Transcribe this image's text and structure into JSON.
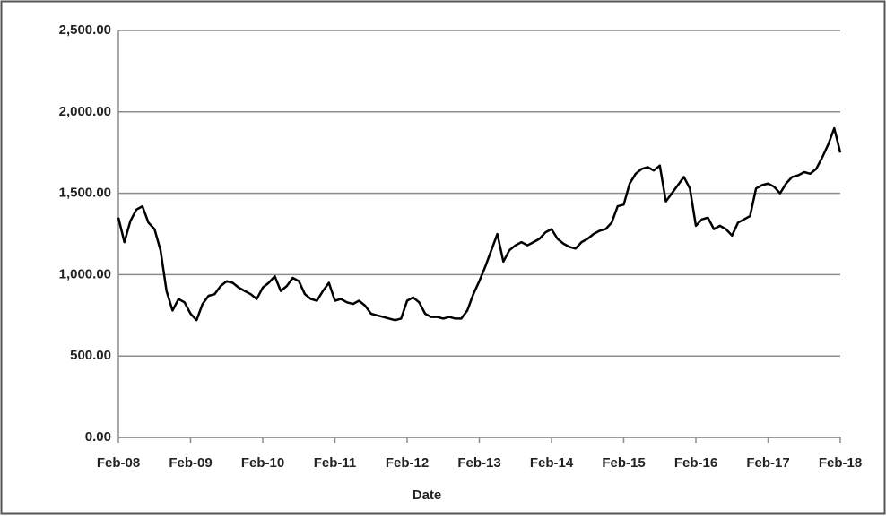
{
  "chart_data": {
    "type": "line",
    "x_label": "Date",
    "x": [
      "2008-02",
      "2008-03",
      "2008-04",
      "2008-05",
      "2008-06",
      "2008-07",
      "2008-08",
      "2008-09",
      "2008-10",
      "2008-11",
      "2008-12",
      "2009-01",
      "2009-02",
      "2009-03",
      "2009-04",
      "2009-05",
      "2009-06",
      "2009-07",
      "2009-08",
      "2009-09",
      "2009-10",
      "2009-11",
      "2009-12",
      "2010-01",
      "2010-02",
      "2010-03",
      "2010-04",
      "2010-05",
      "2010-06",
      "2010-07",
      "2010-08",
      "2010-09",
      "2010-10",
      "2010-11",
      "2010-12",
      "2011-01",
      "2011-02",
      "2011-03",
      "2011-04",
      "2011-05",
      "2011-06",
      "2011-07",
      "2011-08",
      "2011-09",
      "2011-10",
      "2011-11",
      "2011-12",
      "2012-01",
      "2012-02",
      "2012-03",
      "2012-04",
      "2012-05",
      "2012-06",
      "2012-07",
      "2012-08",
      "2012-09",
      "2012-10",
      "2012-11",
      "2012-12",
      "2013-01",
      "2013-02",
      "2013-03",
      "2013-04",
      "2013-05",
      "2013-06",
      "2013-07",
      "2013-08",
      "2013-09",
      "2013-10",
      "2013-11",
      "2013-12",
      "2014-01",
      "2014-02",
      "2014-03",
      "2014-04",
      "2014-05",
      "2014-06",
      "2014-07",
      "2014-08",
      "2014-09",
      "2014-10",
      "2014-11",
      "2014-12",
      "2015-01",
      "2015-02",
      "2015-03",
      "2015-04",
      "2015-05",
      "2015-06",
      "2015-07",
      "2015-08",
      "2015-09",
      "2015-10",
      "2015-11",
      "2015-12",
      "2016-01",
      "2016-02",
      "2016-03",
      "2016-04",
      "2016-05",
      "2016-06",
      "2016-07",
      "2016-08",
      "2016-09",
      "2016-10",
      "2016-11",
      "2016-12",
      "2017-01",
      "2017-02",
      "2017-03",
      "2017-04",
      "2017-05",
      "2017-06",
      "2017-07",
      "2017-08",
      "2017-09",
      "2017-10",
      "2017-11",
      "2017-12",
      "2018-01",
      "2018-02"
    ],
    "values": [
      1350,
      1200,
      1330,
      1400,
      1420,
      1320,
      1280,
      1150,
      900,
      780,
      850,
      830,
      760,
      720,
      820,
      870,
      880,
      930,
      960,
      950,
      920,
      900,
      880,
      850,
      920,
      950,
      990,
      900,
      930,
      980,
      960,
      880,
      850,
      840,
      900,
      950,
      840,
      850,
      830,
      820,
      840,
      810,
      760,
      750,
      740,
      730,
      720,
      730,
      840,
      860,
      830,
      760,
      740,
      740,
      730,
      740,
      730,
      730,
      780,
      880,
      960,
      1050,
      1150,
      1250,
      1080,
      1150,
      1180,
      1200,
      1180,
      1200,
      1220,
      1260,
      1280,
      1220,
      1190,
      1170,
      1160,
      1200,
      1220,
      1250,
      1270,
      1280,
      1320,
      1420,
      1430,
      1560,
      1620,
      1650,
      1660,
      1640,
      1670,
      1450,
      1500,
      1550,
      1600,
      1530,
      1300,
      1340,
      1350,
      1280,
      1300,
      1280,
      1240,
      1320,
      1340,
      1360,
      1530,
      1550,
      1560,
      1540,
      1500,
      1560,
      1600,
      1610,
      1630,
      1620,
      1650,
      1720,
      1800,
      1900,
      1750
    ],
    "color": "#000000",
    "xlim": [
      "2008-02",
      "2018-02"
    ],
    "xticks": [
      {
        "value": "2008-02",
        "label": "Feb-08"
      },
      {
        "value": "2009-02",
        "label": "Feb-09"
      },
      {
        "value": "2010-02",
        "label": "Feb-10"
      },
      {
        "value": "2011-02",
        "label": "Feb-11"
      },
      {
        "value": "2012-02",
        "label": "Feb-12"
      },
      {
        "value": "2013-02",
        "label": "Feb-13"
      },
      {
        "value": "2014-02",
        "label": "Feb-14"
      },
      {
        "value": "2015-02",
        "label": "Feb-15"
      },
      {
        "value": "2016-02",
        "label": "Feb-16"
      },
      {
        "value": "2017-02",
        "label": "Feb-17"
      },
      {
        "value": "2018-02",
        "label": "Feb-18"
      }
    ],
    "ylim": [
      0,
      2500
    ],
    "yticks": [
      {
        "value": 0,
        "label": "0.00"
      },
      {
        "value": 500,
        "label": "500.00"
      },
      {
        "value": 1000,
        "label": "1,000.00"
      },
      {
        "value": 1500,
        "label": "1,500.00"
      },
      {
        "value": 2000,
        "label": "2,000.00"
      },
      {
        "value": 2500,
        "label": "2,500.00"
      }
    ],
    "grid": true
  }
}
